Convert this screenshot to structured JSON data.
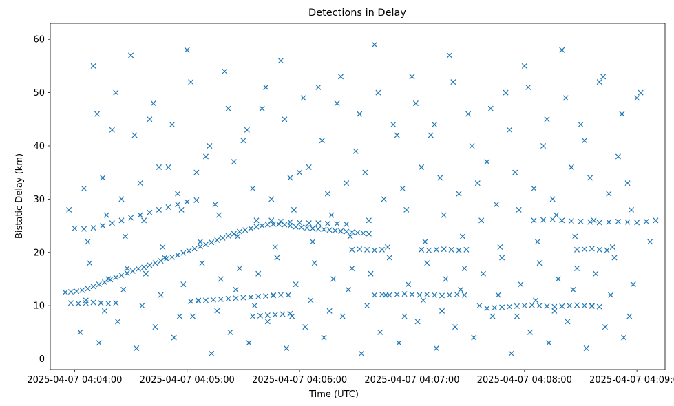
{
  "chart_data": {
    "type": "scatter",
    "title": "Detections in Delay",
    "xlabel": "Time (UTC)",
    "ylabel": "Bistatic Delay (km)",
    "marker": "x",
    "color": "#1f77b4",
    "grid": false,
    "legend": "none",
    "xlim": [
      "2025-04-07 04:03:47",
      "2025-04-07 04:09:15"
    ],
    "ylim": [
      -2,
      63
    ],
    "xticks": [
      {
        "t": "2025-04-07 04:04:00",
        "label": "2025-04-07 04:04:00"
      },
      {
        "t": "2025-04-07 04:05:00",
        "label": "2025-04-07 04:05:00"
      },
      {
        "t": "2025-04-07 04:06:00",
        "label": "2025-04-07 04:06:00"
      },
      {
        "t": "2025-04-07 04:07:00",
        "label": "2025-04-07 04:07:00"
      },
      {
        "t": "2025-04-07 04:08:00",
        "label": "2025-04-07 04:08:00"
      },
      {
        "t": "2025-04-07 04:09:00",
        "label": "2025-04-07 04:09:00"
      }
    ],
    "yticks": [
      0,
      10,
      20,
      30,
      40,
      50,
      60
    ],
    "series": [
      {
        "x": [
          "04:03:55",
          "04:03:58",
          "04:04:01",
          "04:04:04",
          "04:04:07",
          "04:04:10",
          "04:04:13",
          "04:04:16",
          "04:04:19",
          "04:04:22",
          "04:04:25",
          "04:04:28",
          "04:04:31",
          "04:04:34",
          "04:04:37",
          "04:04:40",
          "04:04:43",
          "04:04:46",
          "04:04:49",
          "04:04:52",
          "04:04:55",
          "04:04:58",
          "04:05:01",
          "04:05:04",
          "04:05:07",
          "04:05:10",
          "04:05:13",
          "04:05:16",
          "04:05:19",
          "04:05:22",
          "04:05:25",
          "04:05:28",
          "04:05:31",
          "04:05:34",
          "04:05:37",
          "04:05:40",
          "04:05:43",
          "04:05:46",
          "04:05:49",
          "04:05:52",
          "04:05:55",
          "04:05:58",
          "04:06:01",
          "04:06:04",
          "04:06:07",
          "04:06:10",
          "04:06:13",
          "04:06:16",
          "04:06:19",
          "04:06:22",
          "04:06:25",
          "04:06:28",
          "04:06:31",
          "04:06:34",
          "04:06:37",
          "04:04:00",
          "04:04:05",
          "04:04:10",
          "04:04:15",
          "04:04:20",
          "04:04:25",
          "04:04:30",
          "04:04:35",
          "04:04:40",
          "04:04:45",
          "04:04:50",
          "04:04:55",
          "04:05:00",
          "04:05:05",
          "04:03:58",
          "04:04:02",
          "04:04:06",
          "04:04:10",
          "04:04:14",
          "04:04:18",
          "04:04:22",
          "04:05:02",
          "04:05:06",
          "04:05:10",
          "04:05:14",
          "04:05:18",
          "04:05:22",
          "04:05:26",
          "04:05:30",
          "04:05:34",
          "04:05:38",
          "04:05:42",
          "04:05:46",
          "04:05:50",
          "04:05:54",
          "04:05:35",
          "04:05:39",
          "04:05:43",
          "04:05:47",
          "04:05:51",
          "04:05:55",
          "04:05:45",
          "04:05:50",
          "04:05:55",
          "04:06:00",
          "04:06:05",
          "04:06:10",
          "04:06:15",
          "04:06:20",
          "04:06:25",
          "04:06:40",
          "04:06:44",
          "04:06:48",
          "04:06:52",
          "04:06:56",
          "04:07:00",
          "04:07:04",
          "04:07:08",
          "04:07:12",
          "04:07:16",
          "04:07:20",
          "04:07:24",
          "04:07:28",
          "04:07:05",
          "04:07:09",
          "04:07:13",
          "04:07:17",
          "04:07:21",
          "04:07:25",
          "04:07:29",
          "04:06:28",
          "04:06:32",
          "04:06:36",
          "04:06:40",
          "04:06:44",
          "04:07:40",
          "04:07:44",
          "04:07:48",
          "04:07:52",
          "04:07:56",
          "04:08:00",
          "04:08:04",
          "04:08:08",
          "04:08:12",
          "04:08:16",
          "04:08:20",
          "04:08:24",
          "04:08:28",
          "04:08:32",
          "04:08:36",
          "04:08:40",
          "04:08:05",
          "04:08:10",
          "04:08:15",
          "04:08:20",
          "04:08:25",
          "04:08:30",
          "04:08:35",
          "04:08:40",
          "04:08:45",
          "04:08:50",
          "04:08:55",
          "04:09:00",
          "04:09:05",
          "04:09:10",
          "04:08:28",
          "04:08:32",
          "04:08:36",
          "04:08:40",
          "04:08:44",
          "04:04:10",
          "04:04:20",
          "04:04:30",
          "04:04:40",
          "04:04:50",
          "04:05:00",
          "04:05:10",
          "04:05:20",
          "04:05:30",
          "04:05:40",
          "04:05:50",
          "04:06:00",
          "04:06:10",
          "04:06:20",
          "04:06:30",
          "04:06:40",
          "04:06:50",
          "04:07:00",
          "04:07:10",
          "04:07:20",
          "04:07:30",
          "04:07:40",
          "04:07:50",
          "04:08:00",
          "04:08:10",
          "04:08:20",
          "04:08:30",
          "04:08:40",
          "04:08:50",
          "04:09:00",
          "04:04:05",
          "04:04:15",
          "04:04:25",
          "04:04:35",
          "04:04:45",
          "04:04:55",
          "04:05:05",
          "04:05:15",
          "04:05:25",
          "04:05:35",
          "04:05:45",
          "04:05:55",
          "04:06:05",
          "04:06:15",
          "04:06:25",
          "04:06:35",
          "04:06:45",
          "04:06:55",
          "04:07:05",
          "04:07:15",
          "04:07:25",
          "04:07:35",
          "04:07:45",
          "04:07:55",
          "04:08:05",
          "04:08:15",
          "04:08:25",
          "04:08:35",
          "04:08:45",
          "04:08:55",
          "04:04:03",
          "04:04:13",
          "04:04:23",
          "04:04:33",
          "04:04:43",
          "04:04:53",
          "04:05:03",
          "04:05:13",
          "04:05:23",
          "04:05:33",
          "04:05:43",
          "04:05:53",
          "04:06:03",
          "04:06:13",
          "04:06:23",
          "04:06:33",
          "04:06:43",
          "04:06:53",
          "04:07:03",
          "04:07:13",
          "04:07:23",
          "04:07:33",
          "04:07:43",
          "04:07:53",
          "04:08:03",
          "04:08:13",
          "04:08:23",
          "04:08:33",
          "04:08:43",
          "04:08:53",
          "04:04:08",
          "04:04:18",
          "04:04:28",
          "04:04:38",
          "04:04:48",
          "04:04:58",
          "04:05:08",
          "04:05:18",
          "04:05:28",
          "04:05:38",
          "04:05:48",
          "04:05:58",
          "04:06:08",
          "04:06:18",
          "04:06:28",
          "04:06:38",
          "04:06:48",
          "04:06:58",
          "04:07:08",
          "04:07:18",
          "04:07:28",
          "04:07:38",
          "04:07:48",
          "04:07:58",
          "04:08:08",
          "04:08:18",
          "04:08:28",
          "04:08:38",
          "04:08:48",
          "04:08:58",
          "04:03:57",
          "04:04:07",
          "04:04:17",
          "04:04:27",
          "04:04:37",
          "04:04:47",
          "04:04:57",
          "04:05:07",
          "04:05:17",
          "04:05:27",
          "04:05:37",
          "04:05:47",
          "04:05:57",
          "04:06:07",
          "04:06:17",
          "04:06:27",
          "04:06:37",
          "04:06:47",
          "04:06:57",
          "04:07:07",
          "04:07:17",
          "04:07:27",
          "04:07:37",
          "04:07:47",
          "04:07:57",
          "04:08:07",
          "04:08:17",
          "04:08:27",
          "04:08:37",
          "04:08:47",
          "04:08:57",
          "04:09:07",
          "04:04:12",
          "04:04:22",
          "04:04:32",
          "04:04:42",
          "04:04:52",
          "04:05:02",
          "04:05:12",
          "04:05:22",
          "04:05:32",
          "04:05:42",
          "04:05:52",
          "04:06:02",
          "04:06:12",
          "04:06:22",
          "04:06:32",
          "04:06:42",
          "04:06:52",
          "04:07:02",
          "04:07:12",
          "04:07:22",
          "04:07:32",
          "04:07:42",
          "04:07:52",
          "04:08:02",
          "04:08:12",
          "04:08:22",
          "04:08:32",
          "04:08:42",
          "04:08:52",
          "04:09:02",
          "04:04:06",
          "04:04:16",
          "04:04:26",
          "04:04:36",
          "04:04:46",
          "04:04:56",
          "04:05:06",
          "04:05:16",
          "04:05:26",
          "04:05:36",
          "04:05:46",
          "04:05:56",
          "04:06:06",
          "04:06:16",
          "04:06:26",
          "04:06:36",
          "04:06:46",
          "04:06:56",
          "04:07:06",
          "04:07:16",
          "04:07:26",
          "04:07:36",
          "04:07:46",
          "04:07:56",
          "04:08:06",
          "04:08:16",
          "04:08:26",
          "04:08:36",
          "04:08:46",
          "04:08:56"
        ],
        "y": [
          12.5,
          12.6,
          12.7,
          12.9,
          13.2,
          13.6,
          14.0,
          14.4,
          14.9,
          15.3,
          15.7,
          16.1,
          16.5,
          16.9,
          17.2,
          17.6,
          18.0,
          18.4,
          18.8,
          19.1,
          19.5,
          19.9,
          20.3,
          20.7,
          21.1,
          21.5,
          21.9,
          22.3,
          22.7,
          23.1,
          23.5,
          23.9,
          24.2,
          24.5,
          24.8,
          25.0,
          25.2,
          25.3,
          25.3,
          25.2,
          25.0,
          24.8,
          24.7,
          24.6,
          24.5,
          24.4,
          24.3,
          24.2,
          24.1,
          24.0,
          23.9,
          23.8,
          23.7,
          23.6,
          23.5,
          24.5,
          24.4,
          24.6,
          25.0,
          25.5,
          26.0,
          26.5,
          27.0,
          27.5,
          28.0,
          28.5,
          29.0,
          29.5,
          29.8,
          10.5,
          10.4,
          10.5,
          10.6,
          10.5,
          10.4,
          10.5,
          10.8,
          10.9,
          11.0,
          11.1,
          11.2,
          11.3,
          11.4,
          11.5,
          11.6,
          11.7,
          11.8,
          11.9,
          12.0,
          12.0,
          8.0,
          8.1,
          8.2,
          8.3,
          8.4,
          8.5,
          26.0,
          25.8,
          25.7,
          25.6,
          25.5,
          25.5,
          25.4,
          25.4,
          25.3,
          12.0,
          12.1,
          12.0,
          12.1,
          12.2,
          12.1,
          12.0,
          12.1,
          12.0,
          11.9,
          12.0,
          12.1,
          12.0,
          20.5,
          20.4,
          20.5,
          20.6,
          20.5,
          20.4,
          20.5,
          20.5,
          20.6,
          20.5,
          20.4,
          20.5,
          9.5,
          9.6,
          9.7,
          9.8,
          9.9,
          10.0,
          10.1,
          10.0,
          9.9,
          9.8,
          9.9,
          10.0,
          10.1,
          10.0,
          9.9,
          9.8,
          26.0,
          26.1,
          26.2,
          26.0,
          25.9,
          25.8,
          25.7,
          25.6,
          25.7,
          25.8,
          25.7,
          25.6,
          25.8,
          26.0,
          20.5,
          20.6,
          20.7,
          20.5,
          20.4,
          55,
          43,
          57,
          45,
          36,
          58,
          38,
          54,
          41,
          47,
          56,
          35,
          51,
          48,
          39,
          59,
          44,
          53,
          42,
          57,
          46,
          37,
          50,
          55,
          40,
          58,
          44,
          52,
          38,
          49,
          32,
          34,
          30,
          33,
          36,
          31,
          35,
          29,
          37,
          32,
          30,
          34,
          36,
          31,
          33,
          35,
          30,
          32,
          36,
          34,
          31,
          33,
          29,
          35,
          32,
          30,
          36,
          34,
          31,
          33,
          5,
          3,
          7,
          2,
          6,
          4,
          8,
          1,
          5,
          3,
          7,
          2,
          6,
          4,
          8,
          1,
          5,
          3,
          7,
          2,
          6,
          4,
          8,
          1,
          5,
          3,
          7,
          2,
          6,
          4,
          18,
          15,
          17,
          16,
          19,
          14,
          18,
          15,
          17,
          16,
          19,
          14,
          18,
          15,
          17,
          16,
          19,
          14,
          18,
          15,
          17,
          16,
          19,
          14,
          18,
          15,
          17,
          16,
          19,
          14,
          28,
          22,
          27,
          23,
          26,
          21,
          28,
          22,
          27,
          23,
          26,
          21,
          28,
          22,
          27,
          23,
          26,
          21,
          28,
          22,
          27,
          23,
          26,
          21,
          28,
          22,
          27,
          23,
          26,
          21,
          28,
          22,
          46,
          50,
          42,
          48,
          44,
          52,
          40,
          47,
          43,
          51,
          45,
          49,
          41,
          53,
          46,
          50,
          42,
          48,
          44,
          52,
          40,
          47,
          43,
          51,
          45,
          49,
          41,
          53,
          46,
          50,
          11,
          9,
          13,
          10,
          12,
          8,
          11,
          9,
          13,
          10,
          12,
          8,
          11,
          9,
          13,
          10,
          12,
          8,
          11,
          9,
          13,
          10,
          12,
          8,
          11,
          9,
          13,
          10,
          12,
          8
        ]
      }
    ]
  }
}
